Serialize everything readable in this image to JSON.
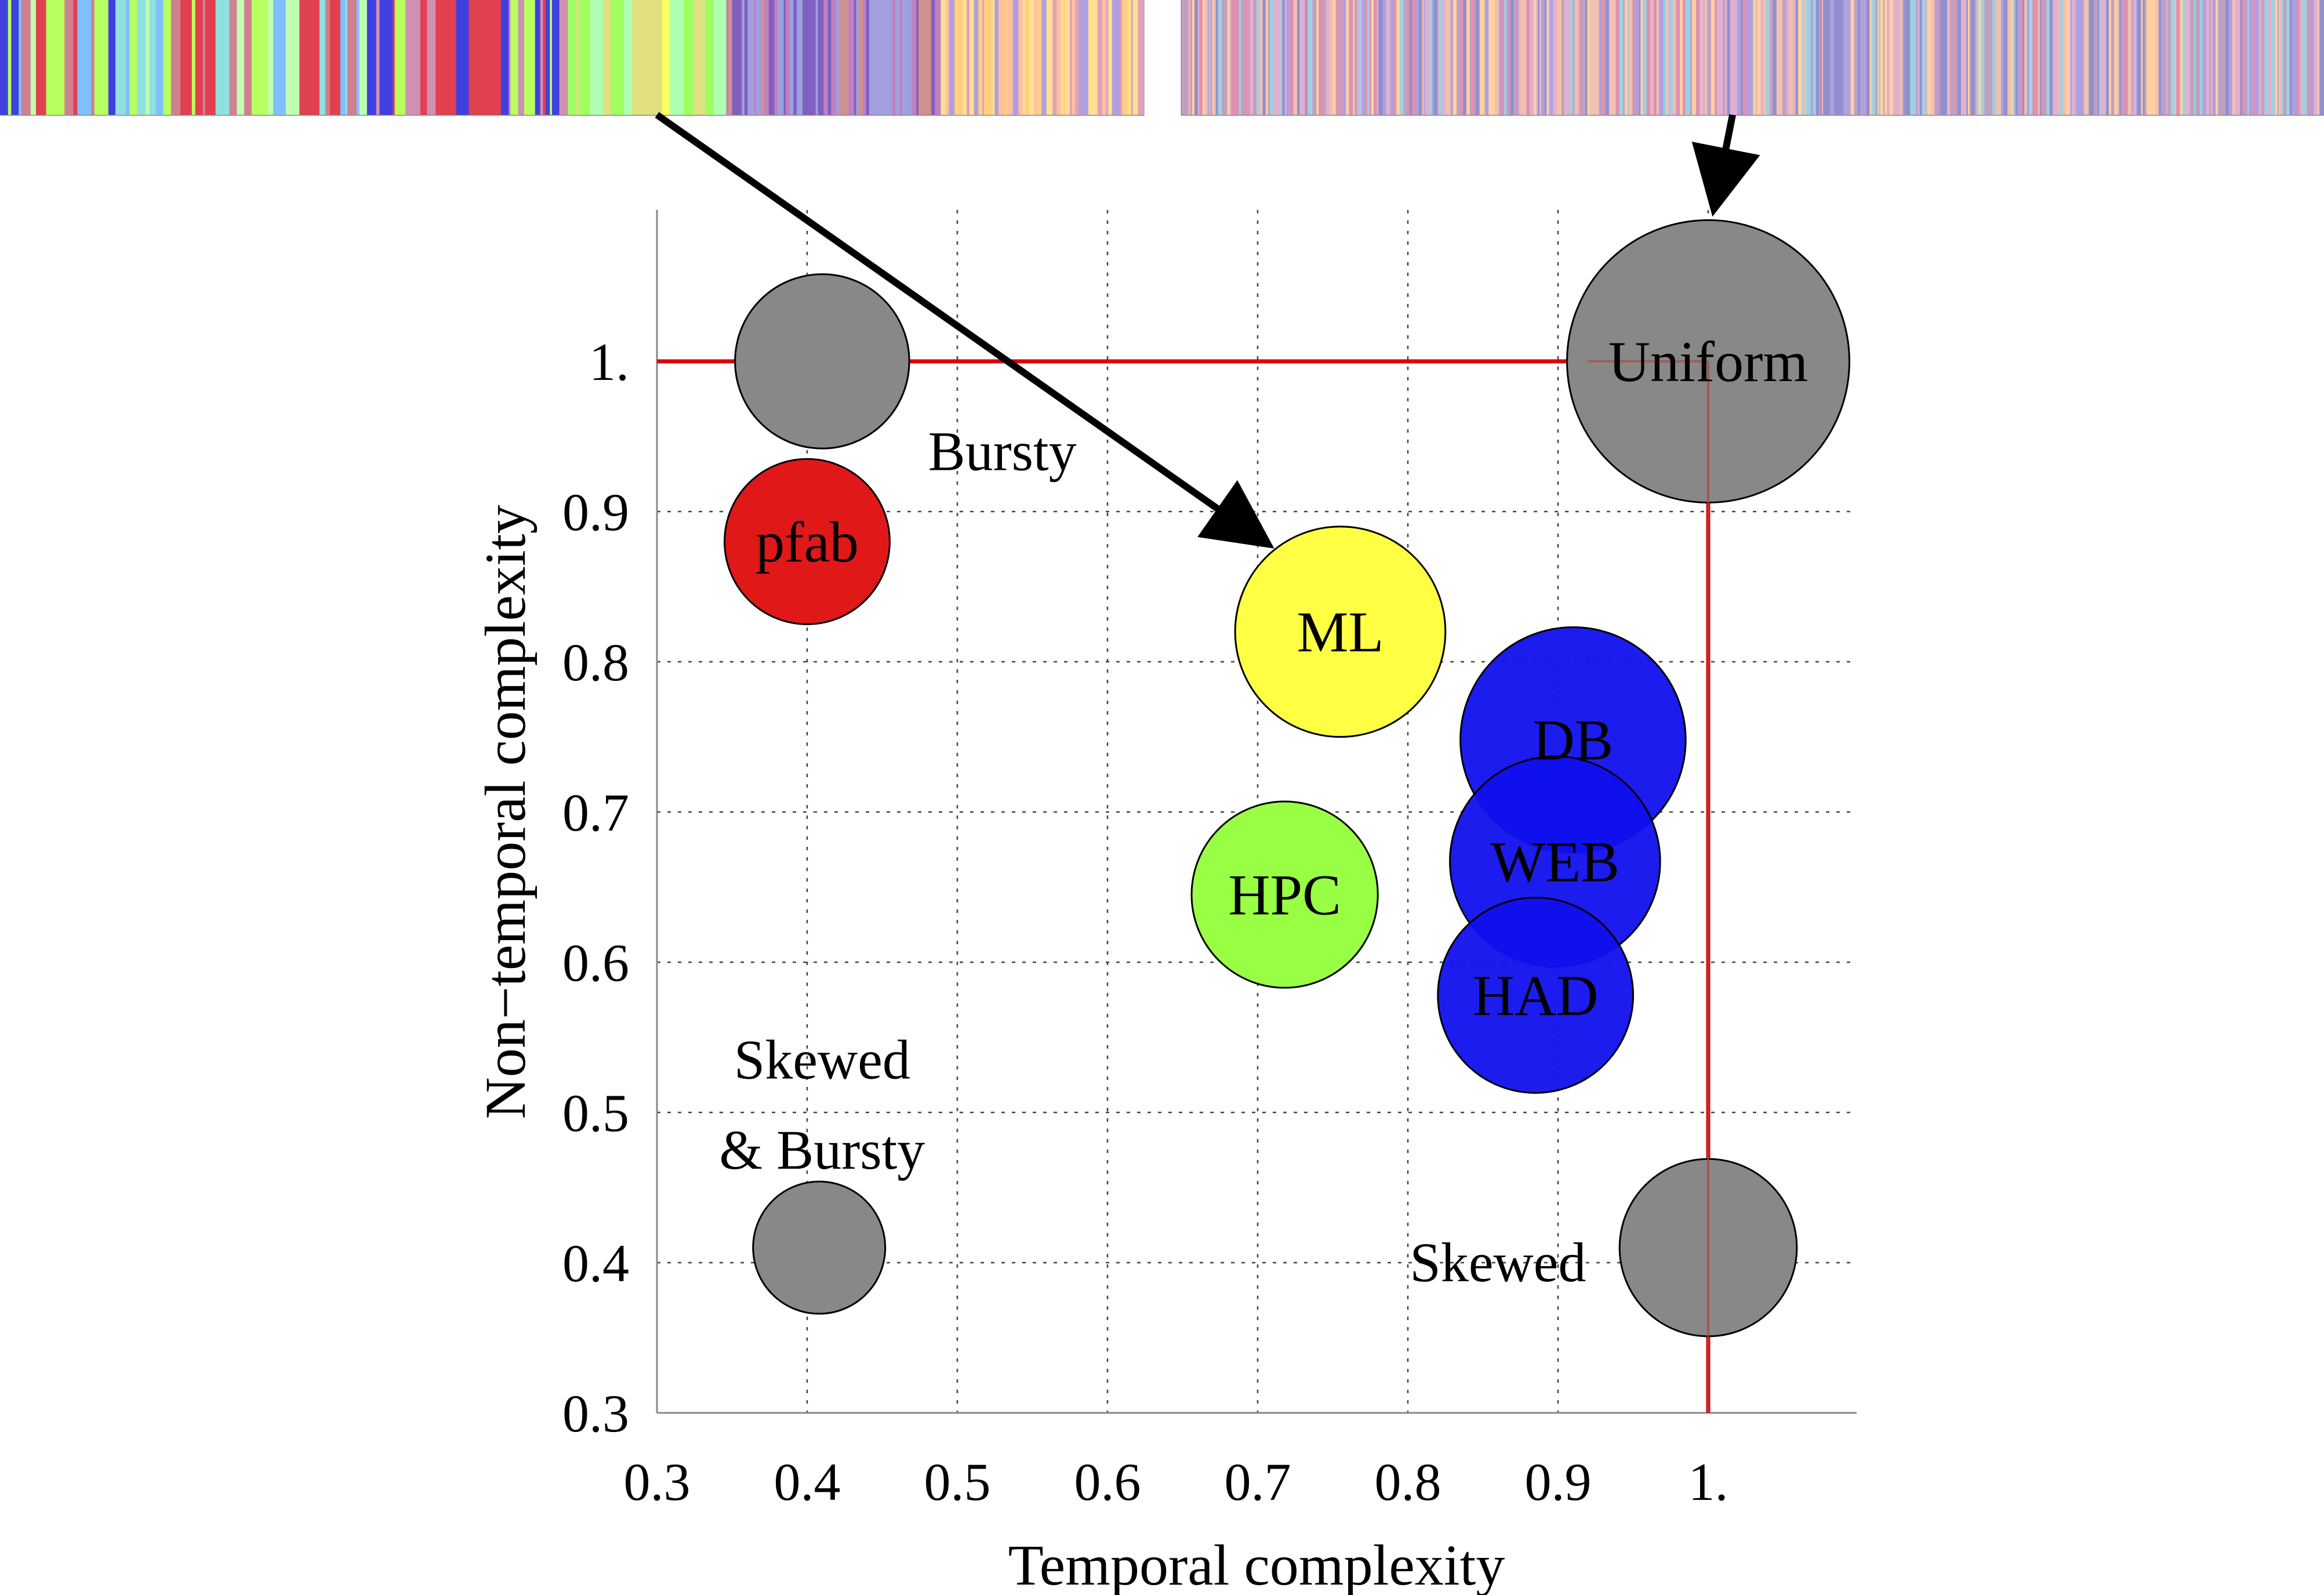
{
  "chart_data": {
    "type": "scatter",
    "subtype": "bubble",
    "title": "",
    "xlabel": "Temporal complexity",
    "ylabel": "Non−temporal complexity",
    "xlim": [
      0.3,
      1.1
    ],
    "ylim": [
      0.3,
      1.1
    ],
    "x_ticks": [
      0.3,
      0.4,
      0.5,
      0.6,
      0.7,
      0.8,
      0.9,
      1.0
    ],
    "x_tick_labels": [
      "0.3",
      "0.4",
      "0.5",
      "0.6",
      "0.7",
      "0.8",
      "0.9",
      "1."
    ],
    "y_ticks": [
      0.3,
      0.4,
      0.5,
      0.6,
      0.7,
      0.8,
      0.9,
      1.0
    ],
    "y_tick_labels": [
      "0.3",
      "0.4",
      "0.5",
      "0.6",
      "0.7",
      "0.8",
      "0.9",
      "1."
    ],
    "grid": true,
    "reference_lines": [
      {
        "orientation": "horizontal",
        "y": 1.0,
        "x_range": [
          0.3,
          1.0
        ],
        "color": "#e00000"
      },
      {
        "orientation": "vertical",
        "x": 1.0,
        "y_range": [
          0.3,
          1.0
        ],
        "color": "#e00000"
      }
    ],
    "points": [
      {
        "label": "",
        "x": 0.41,
        "y": 1.0,
        "radius": 0.058,
        "color": "#888888"
      },
      {
        "label": "Uniform",
        "x": 1.0,
        "y": 1.0,
        "radius": 0.094,
        "color": "#888888"
      },
      {
        "label": "pfab",
        "x": 0.4,
        "y": 0.88,
        "radius": 0.055,
        "color": "#e01818"
      },
      {
        "label": "ML",
        "x": 0.755,
        "y": 0.82,
        "radius": 0.07,
        "color": "#ffff44"
      },
      {
        "label": "DB",
        "x": 0.91,
        "y": 0.748,
        "radius": 0.075,
        "color": "#1010ee"
      },
      {
        "label": "WEB",
        "x": 0.898,
        "y": 0.667,
        "radius": 0.07,
        "color": "#1010ee"
      },
      {
        "label": "HPC",
        "x": 0.718,
        "y": 0.645,
        "radius": 0.062,
        "color": "#99ff44"
      },
      {
        "label": "HAD",
        "x": 0.885,
        "y": 0.578,
        "radius": 0.065,
        "color": "#1010ee"
      },
      {
        "label": "",
        "x": 0.408,
        "y": 0.41,
        "radius": 0.044,
        "color": "#888888"
      },
      {
        "label": "",
        "x": 1.0,
        "y": 0.41,
        "radius": 0.059,
        "color": "#888888"
      }
    ],
    "annotations": [
      {
        "text": "Bursty",
        "x": 0.53,
        "y": 0.94
      },
      {
        "text": "Skewed",
        "x": 0.41,
        "y": 0.535
      },
      {
        "text": "& Bursty",
        "x": 0.41,
        "y": 0.475
      },
      {
        "text": "Skewed",
        "x": 0.86,
        "y": 0.4
      }
    ],
    "trace_strips": [
      {
        "description": "left",
        "pattern": "mixed-segments",
        "arrow_target": "ML"
      },
      {
        "description": "right",
        "pattern": "fine-uniform",
        "arrow_target": "Uniform"
      }
    ]
  },
  "colors": {
    "red": "#e00000",
    "gray": "#888888",
    "yellow": "#ffff44",
    "green": "#99ff44",
    "blue": "#1010ee",
    "red_bubble": "#e01818"
  }
}
